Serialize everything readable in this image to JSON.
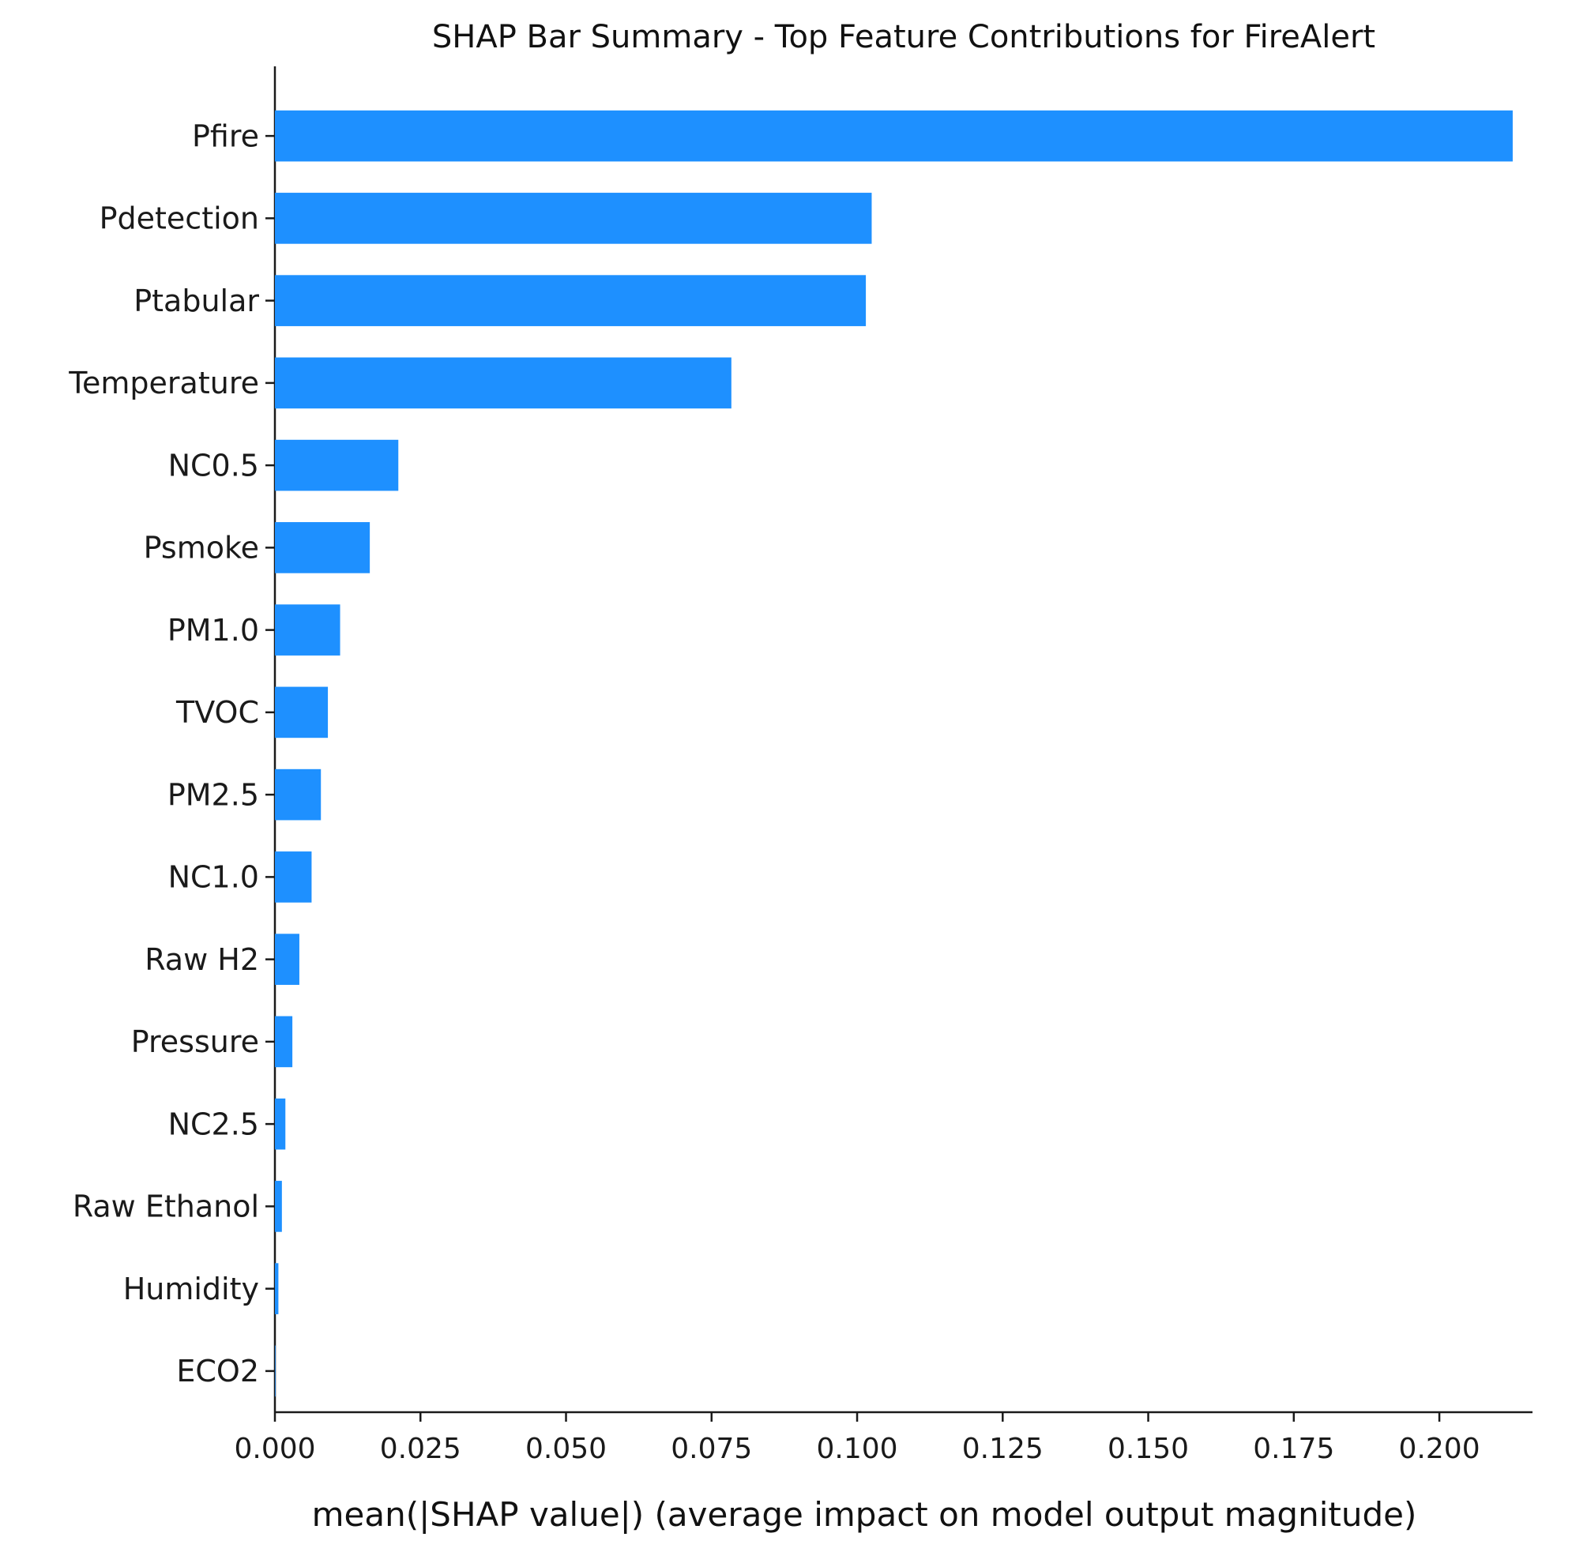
{
  "chart_data": {
    "type": "bar",
    "orientation": "horizontal",
    "title": "SHAP Bar Summary - Top Feature Contributions for FireAlert",
    "xlabel": "mean(|SHAP value|) (average impact on model output magnitude)",
    "ylabel": "",
    "categories": [
      "Pfire",
      "Pdetection",
      "Ptabular",
      "Temperature",
      "NC0.5",
      "Psmoke",
      "PM1.0",
      "TVOC",
      "PM2.5",
      "NC1.0",
      "Raw H2",
      "Pressure",
      "NC2.5",
      "Raw Ethanol",
      "Humidity",
      "ECO2"
    ],
    "values": [
      0.2126,
      0.1025,
      0.1015,
      0.0784,
      0.0212,
      0.0163,
      0.0112,
      0.0091,
      0.0079,
      0.0063,
      0.0042,
      0.003,
      0.0018,
      0.0012,
      0.0006,
      0.0001
    ],
    "xlim": [
      0,
      0.216
    ],
    "xticks": [
      0.0,
      0.025,
      0.05,
      0.075,
      0.1,
      0.125,
      0.15,
      0.175,
      0.2
    ],
    "xtick_labels": [
      "0.000",
      "0.025",
      "0.050",
      "0.075",
      "0.100",
      "0.125",
      "0.150",
      "0.175",
      "0.200"
    ],
    "bar_color": "#1E90FF",
    "grid": false,
    "legend": null
  }
}
